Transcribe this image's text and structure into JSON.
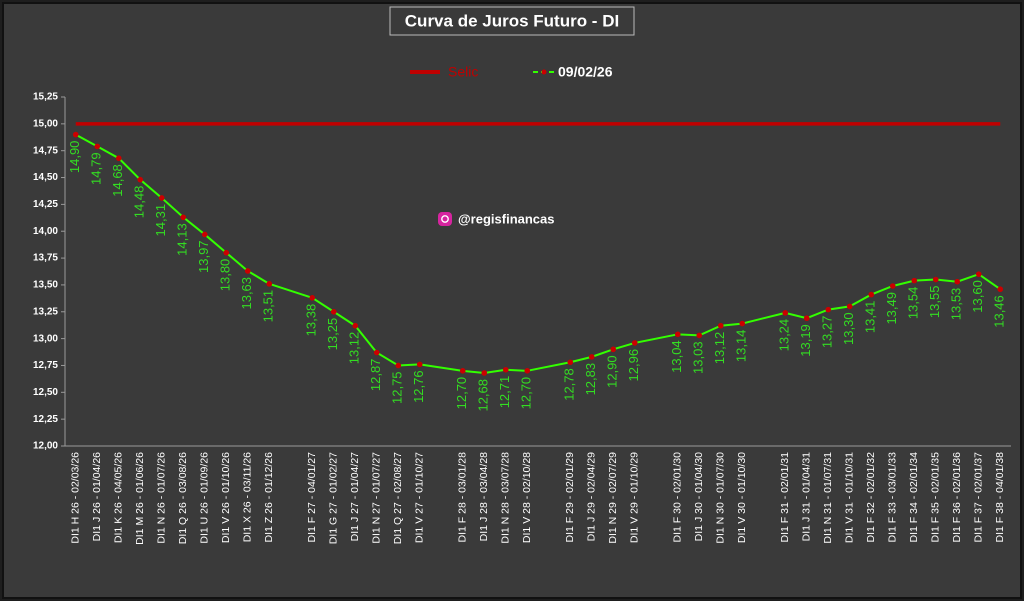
{
  "chart_data": {
    "type": "line",
    "title": "Curva de Juros Futuro - DI",
    "annotation": "@regisfinancas",
    "categories": [
      "DI1 H 26 - 02/03/26",
      "DI1 J 26 - 01/04/26",
      "DI1 K 26 - 04/05/26",
      "DI1 M 26 - 01/06/26",
      "DI1 N 26 - 01/07/26",
      "DI1 Q 26 - 03/08/26",
      "DI1 U 26 - 01/09/26",
      "DI1 V 26 - 01/10/26",
      "DI1 X 26 - 03/11/26",
      "DI1 Z 26 - 01/12/26",
      null,
      "DI1 F 27 - 04/01/27",
      "DI1 G 27 - 01/02/27",
      "DI1 J 27 - 01/04/27",
      "DI1 N 27 - 01/07/27",
      "DI1 Q 27 - 02/08/27",
      "DI1 V 27 - 01/10/27",
      null,
      "DI1 F 28 - 03/01/28",
      "DI1 J 28 - 03/04/28",
      "DI1 N 28 - 03/07/28",
      "DI1 V 28 - 02/10/28",
      null,
      "DI1 F 29 - 02/01/29",
      "DI1 J 29 - 02/04/29",
      "DI1 N 29 - 02/07/29",
      "DI1 V 29 - 01/10/29",
      null,
      "DI1 F 30 - 02/01/30",
      "DI1 J 30 - 01/04/30",
      "DI1 N 30 - 01/07/30",
      "DI1 V 30 - 01/10/30",
      null,
      "DI1 F 31 - 02/01/31",
      "DI1 J 31 - 01/04/31",
      "DI1 N 31 - 01/07/31",
      "DI1 V 31 - 01/10/31",
      "DI1 F 32 - 02/01/32",
      "DI1 F 33 - 03/01/33",
      "DI1 F 34 - 02/01/34",
      "DI1 F 35 - 02/01/35",
      "DI1 F 36 - 02/01/36",
      "DI1 F 37 - 02/01/37",
      "DI1 F 38 - 04/01/38"
    ],
    "series": [
      {
        "name": "Selic",
        "color": "#c00000",
        "values": [
          15,
          15,
          15,
          15,
          15,
          15,
          15,
          15,
          15,
          15,
          15,
          15,
          15,
          15,
          15,
          15,
          15,
          15,
          15,
          15,
          15,
          15,
          15,
          15,
          15,
          15,
          15,
          15,
          15,
          15,
          15,
          15,
          15,
          15,
          15,
          15,
          15,
          15,
          15,
          15,
          15,
          15,
          15,
          15
        ]
      },
      {
        "name": "09/02/26",
        "color": "#33ff00",
        "marker_color": "#cc0000",
        "values": [
          14.9,
          14.79,
          14.68,
          14.48,
          14.31,
          14.13,
          13.97,
          13.8,
          13.63,
          13.51,
          null,
          13.38,
          13.25,
          13.12,
          12.87,
          12.75,
          12.76,
          null,
          12.7,
          12.68,
          12.71,
          12.7,
          null,
          12.78,
          12.83,
          12.9,
          12.96,
          null,
          13.04,
          13.03,
          13.12,
          13.14,
          null,
          13.24,
          13.19,
          13.27,
          13.3,
          13.41,
          13.49,
          13.54,
          13.55,
          13.53,
          13.6,
          13.46
        ],
        "value_labels": [
          "14,90",
          "14,79",
          "14,68",
          "14,48",
          "14,31",
          "14,13",
          "13,97",
          "13,80",
          "13,63",
          "13,51",
          null,
          "13,38",
          "13,25",
          "13,12",
          "12,87",
          "12,75",
          "12,76",
          null,
          "12,70",
          "12,68",
          "12,71",
          "12,70",
          null,
          "12,78",
          "12,83",
          "12,90",
          "12,96",
          null,
          "13,04",
          "13,03",
          "13,12",
          "13,14",
          null,
          "13,24",
          "13,19",
          "13,27",
          "13,30",
          "13,41",
          "13,49",
          "13,54",
          "13,55",
          "13,53",
          "13,60",
          "13,46"
        ]
      }
    ],
    "ylim": [
      12,
      15.25
    ],
    "yticks": [
      {
        "value": 12,
        "label": "12,00"
      },
      {
        "value": 12.25,
        "label": "12,25"
      },
      {
        "value": 12.5,
        "label": "12,50"
      },
      {
        "value": 12.75,
        "label": "12,75"
      },
      {
        "value": 13,
        "label": "13,00"
      },
      {
        "value": 13.25,
        "label": "13,25"
      },
      {
        "value": 13.5,
        "label": "13,50"
      },
      {
        "value": 13.75,
        "label": "13,75"
      },
      {
        "value": 14,
        "label": "14,00"
      },
      {
        "value": 14.25,
        "label": "14,25"
      },
      {
        "value": 14.5,
        "label": "14,50"
      },
      {
        "value": 14.75,
        "label": "14,75"
      },
      {
        "value": 15,
        "label": "15,00"
      },
      {
        "value": 15.25,
        "label": "15,25"
      }
    ],
    "grid": false,
    "legend": "top"
  }
}
